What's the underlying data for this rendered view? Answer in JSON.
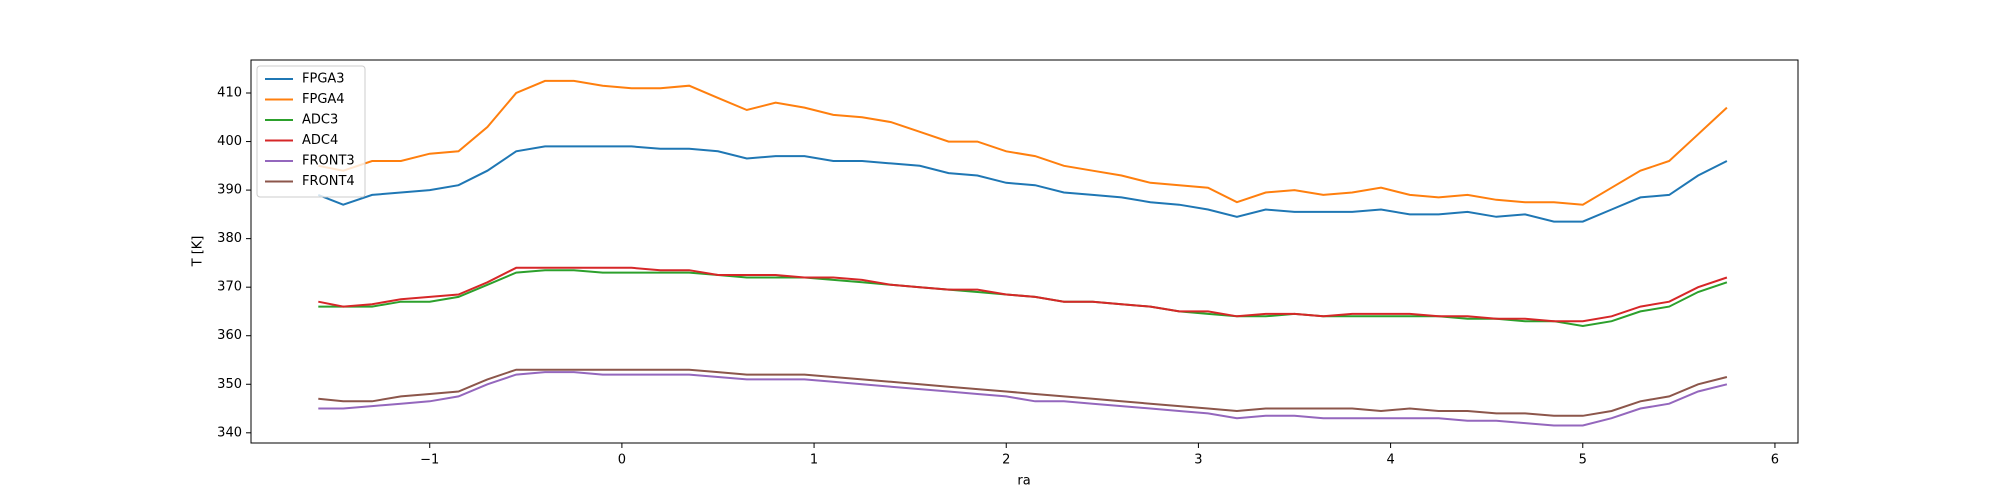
{
  "chart_data": {
    "type": "line",
    "xlabel": "ra",
    "ylabel": "T [K]",
    "xlim": [
      -1.93,
      6.12
    ],
    "ylim": [
      337.9,
      416.8
    ],
    "xticks": [
      {
        "value": -1,
        "label": "−1"
      },
      0,
      1,
      2,
      3,
      4,
      5,
      6
    ],
    "yticks": [
      340,
      350,
      360,
      370,
      380,
      390,
      400,
      410
    ],
    "legend": "upper left",
    "x": [
      -1.58,
      -1.45,
      -1.3,
      -1.15,
      -1.0,
      -0.85,
      -0.7,
      -0.55,
      -0.4,
      -0.25,
      -0.1,
      0.05,
      0.2,
      0.35,
      0.5,
      0.65,
      0.8,
      0.95,
      1.1,
      1.25,
      1.4,
      1.55,
      1.7,
      1.85,
      2.0,
      2.15,
      2.3,
      2.45,
      2.6,
      2.75,
      2.9,
      3.05,
      3.2,
      3.35,
      3.5,
      3.65,
      3.8,
      3.95,
      4.1,
      4.25,
      4.4,
      4.55,
      4.7,
      4.85,
      5.0,
      5.15,
      5.3,
      5.45,
      5.6,
      5.75
    ],
    "series": [
      {
        "name": "FPGA3",
        "color": "#1f77b4",
        "values": [
          389,
          387,
          389,
          389.5,
          390,
          391,
          394,
          398,
          399,
          399,
          399,
          399,
          398.5,
          398.5,
          398,
          396.5,
          397,
          397,
          396,
          396,
          395.5,
          395,
          393.5,
          393,
          391.5,
          391,
          389.5,
          389,
          388.5,
          387.5,
          387,
          386,
          384.5,
          386,
          385.5,
          385.5,
          385.5,
          386,
          385,
          385,
          385.5,
          384.5,
          385,
          383.5,
          383.5,
          386,
          388.5,
          389,
          393,
          396
        ]
      },
      {
        "name": "FPGA4",
        "color": "#ff7f0e",
        "values": [
          395,
          394,
          396,
          396,
          397.5,
          398,
          403,
          410,
          412.5,
          412.5,
          411.5,
          411,
          411,
          411.5,
          409,
          406.5,
          408,
          407,
          405.5,
          405,
          404,
          402,
          400,
          400,
          398,
          397,
          395,
          394,
          393,
          391.5,
          391,
          390.5,
          387.5,
          389.5,
          390,
          389,
          389.5,
          390.5,
          389,
          388.5,
          389,
          388,
          387.5,
          387.5,
          387,
          390.5,
          394,
          396,
          401.5,
          407
        ]
      },
      {
        "name": "ADC3",
        "color": "#2ca02c",
        "values": [
          366,
          366,
          366,
          367,
          367,
          368,
          370.5,
          373,
          373.5,
          373.5,
          373,
          373,
          373,
          373,
          372.5,
          372,
          372,
          372,
          371.5,
          371,
          370.5,
          370,
          369.5,
          369,
          368.5,
          368,
          367,
          367,
          366.5,
          366,
          365,
          364.5,
          364,
          364,
          364.5,
          364,
          364,
          364,
          364,
          364,
          363.5,
          363.5,
          363,
          363,
          362,
          363,
          365,
          366,
          369,
          371
        ]
      },
      {
        "name": "ADC4",
        "color": "#d62728",
        "values": [
          367,
          366,
          366.5,
          367.5,
          368,
          368.5,
          371,
          374,
          374,
          374,
          374,
          374,
          373.5,
          373.5,
          372.5,
          372.5,
          372.5,
          372,
          372,
          371.5,
          370.5,
          370,
          369.5,
          369.5,
          368.5,
          368,
          367,
          367,
          366.5,
          366,
          365,
          365,
          364,
          364.5,
          364.5,
          364,
          364.5,
          364.5,
          364.5,
          364,
          364,
          363.5,
          363.5,
          363,
          363,
          364,
          366,
          367,
          370,
          372
        ]
      },
      {
        "name": "FRONT3",
        "color": "#9467bd",
        "values": [
          345,
          345,
          345.5,
          346,
          346.5,
          347.5,
          350,
          352,
          352.5,
          352.5,
          352,
          352,
          352,
          352,
          351.5,
          351,
          351,
          351,
          350.5,
          350,
          349.5,
          349,
          348.5,
          348,
          347.5,
          346.5,
          346.5,
          346,
          345.5,
          345,
          344.5,
          344,
          343,
          343.5,
          343.5,
          343,
          343,
          343,
          343,
          343,
          342.5,
          342.5,
          342,
          341.5,
          341.5,
          343,
          345,
          346,
          348.5,
          350
        ]
      },
      {
        "name": "FRONT4",
        "color": "#8c564b",
        "values": [
          347,
          346.5,
          346.5,
          347.5,
          348,
          348.5,
          351,
          353,
          353,
          353,
          353,
          353,
          353,
          353,
          352.5,
          352,
          352,
          352,
          351.5,
          351,
          350.5,
          350,
          349.5,
          349,
          348.5,
          348,
          347.5,
          347,
          346.5,
          346,
          345.5,
          345,
          344.5,
          345,
          345,
          345,
          345,
          344.5,
          345,
          344.5,
          344.5,
          344,
          344,
          343.5,
          343.5,
          344.5,
          346.5,
          347.5,
          350,
          351.5
        ]
      }
    ]
  }
}
